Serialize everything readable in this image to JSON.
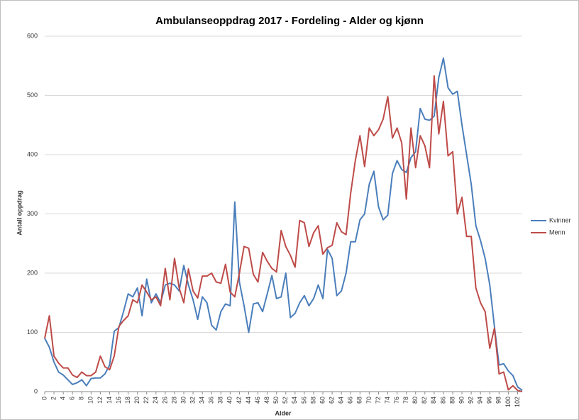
{
  "chart_data": {
    "type": "line",
    "title": "Ambulanseoppdrag 2017 - Fordeling - Alder og kjønn",
    "x_label": "Alder",
    "y_label": "Antall oppdrag",
    "x": [
      0,
      1,
      2,
      3,
      4,
      5,
      6,
      7,
      8,
      9,
      10,
      11,
      12,
      13,
      14,
      15,
      16,
      17,
      18,
      19,
      20,
      21,
      22,
      23,
      24,
      25,
      26,
      27,
      28,
      29,
      30,
      31,
      32,
      33,
      34,
      35,
      36,
      37,
      38,
      39,
      40,
      41,
      42,
      43,
      44,
      45,
      46,
      47,
      48,
      49,
      50,
      51,
      52,
      53,
      54,
      55,
      56,
      57,
      58,
      59,
      60,
      61,
      62,
      63,
      64,
      65,
      66,
      67,
      68,
      69,
      70,
      71,
      72,
      73,
      74,
      75,
      76,
      77,
      78,
      79,
      80,
      81,
      82,
      83,
      84,
      85,
      86,
      87,
      88,
      89,
      90,
      91,
      92,
      93,
      94,
      95,
      96,
      97,
      98,
      99,
      100,
      101,
      102,
      103
    ],
    "xlim": [
      0,
      103
    ],
    "xticks": [
      0,
      2,
      4,
      6,
      8,
      10,
      12,
      14,
      16,
      18,
      20,
      22,
      24,
      26,
      28,
      30,
      32,
      34,
      36,
      38,
      40,
      42,
      44,
      46,
      48,
      50,
      52,
      54,
      56,
      58,
      60,
      62,
      64,
      66,
      68,
      70,
      72,
      74,
      76,
      78,
      80,
      82,
      84,
      86,
      88,
      90,
      92,
      94,
      96,
      98,
      100,
      102
    ],
    "ylim": [
      0,
      600
    ],
    "yticks": [
      0,
      100,
      200,
      300,
      400,
      500,
      600
    ],
    "grid": true,
    "legend": "right",
    "series": [
      {
        "name": "Kvinner",
        "color": "#4a7ebb",
        "values": [
          90,
          75,
          50,
          33,
          28,
          20,
          12,
          15,
          20,
          10,
          22,
          23,
          23,
          30,
          45,
          102,
          108,
          135,
          165,
          160,
          175,
          128,
          190,
          150,
          165,
          150,
          180,
          183,
          180,
          170,
          213,
          180,
          155,
          122,
          160,
          150,
          112,
          104,
          135,
          148,
          145,
          320,
          185,
          145,
          100,
          148,
          150,
          135,
          165,
          196,
          157,
          160,
          200,
          125,
          132,
          150,
          162,
          145,
          157,
          180,
          157,
          240,
          225,
          162,
          170,
          200,
          253,
          253,
          290,
          300,
          350,
          372,
          312,
          290,
          298,
          368,
          390,
          375,
          370,
          395,
          405,
          478,
          460,
          458,
          465,
          530,
          563,
          513,
          502,
          507,
          450,
          400,
          350,
          280,
          255,
          225,
          180,
          110,
          45,
          47,
          35,
          27,
          8,
          2
        ]
      },
      {
        "name": "Menn",
        "color": "#be4b48",
        "values": [
          90,
          128,
          60,
          48,
          40,
          40,
          28,
          24,
          33,
          27,
          27,
          33,
          60,
          42,
          37,
          60,
          110,
          120,
          128,
          155,
          150,
          180,
          168,
          155,
          160,
          145,
          208,
          155,
          225,
          175,
          150,
          207,
          170,
          158,
          195,
          195,
          200,
          185,
          183,
          215,
          168,
          160,
          200,
          245,
          242,
          198,
          185,
          235,
          220,
          208,
          202,
          272,
          245,
          230,
          210,
          289,
          285,
          245,
          268,
          280,
          232,
          243,
          247,
          285,
          270,
          265,
          335,
          390,
          432,
          380,
          445,
          432,
          442,
          460,
          498,
          428,
          445,
          420,
          325,
          445,
          378,
          432,
          415,
          378,
          533,
          435,
          490,
          398,
          405,
          300,
          328,
          262,
          262,
          175,
          150,
          135,
          73,
          107,
          30,
          33,
          3,
          10,
          2,
          0
        ]
      }
    ]
  }
}
